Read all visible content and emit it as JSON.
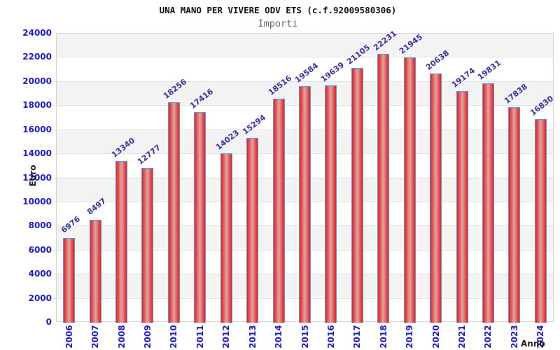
{
  "header": {
    "title": "UNA MANO PER VIVERE ODV ETS (c.f.92009580306)",
    "subtitle": "Importi"
  },
  "chart_data": {
    "type": "bar",
    "title": "UNA MANO PER VIVERE ODV ETS (c.f.92009580306)",
    "subtitle": "Importi",
    "xlabel": "Anno",
    "ylabel": "Euro",
    "categories": [
      "2006",
      "2007",
      "2008",
      "2009",
      "2010",
      "2011",
      "2012",
      "2013",
      "2014",
      "2015",
      "2016",
      "2017",
      "2018",
      "2019",
      "2020",
      "2021",
      "2022",
      "2023",
      "2024"
    ],
    "values": [
      6976,
      8497,
      13340,
      12777,
      18256,
      17416,
      14023,
      15294,
      18516,
      19584,
      19639,
      21105,
      22231,
      21945,
      20638,
      19174,
      19831,
      17838,
      16830
    ],
    "ylim": [
      0,
      24000
    ],
    "ytick_step": 2000,
    "yticks": [
      0,
      2000,
      4000,
      6000,
      8000,
      10000,
      12000,
      14000,
      16000,
      18000,
      20000,
      22000,
      24000
    ],
    "grid": "horizontal gridlines with alternating gray/white bands",
    "legend": "none",
    "colors": {
      "bar_fill_edge": "#e62222",
      "bar_fill_center": "#d6a2a2",
      "bar_border": "#4f9fe0",
      "tick_label": "#1c1ccc",
      "value_label": "#3434a6",
      "band_gray": "#f3f3f3",
      "plot_border": "#d4d4d4",
      "subtitle_gray": "#666666"
    }
  }
}
